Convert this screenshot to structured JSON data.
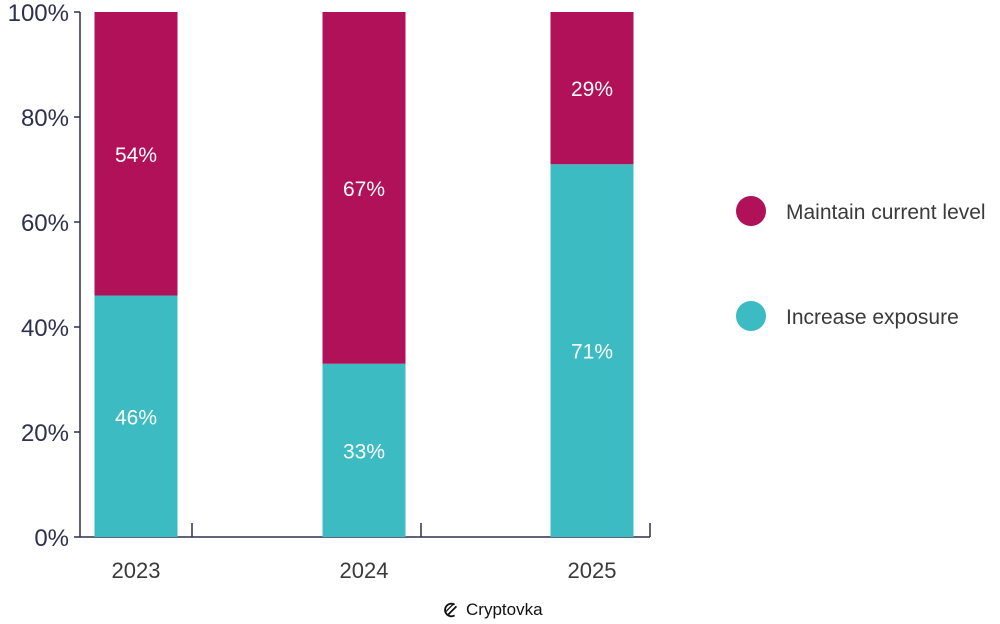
{
  "chart_data": {
    "type": "bar",
    "stacked": true,
    "title": "",
    "xlabel": "",
    "ylabel": "",
    "categories": [
      "2023",
      "2024",
      "2025"
    ],
    "series": [
      {
        "name": "Increase exposure",
        "values": [
          46,
          33,
          71
        ],
        "labels": [
          "46%",
          "33%",
          "71%"
        ],
        "color": "#3dbbc3"
      },
      {
        "name": "Maintain current level",
        "values": [
          54,
          67,
          29
        ],
        "labels": [
          "54%",
          "67%",
          "29%"
        ],
        "color": "#b01158"
      }
    ],
    "ylim": [
      0,
      100
    ],
    "yticks": [
      0,
      20,
      40,
      60,
      80,
      100
    ],
    "ytick_labels": [
      "0%",
      "20%",
      "40%",
      "60%",
      "80%",
      "100%"
    ],
    "legend": {
      "placement": "right",
      "items": [
        {
          "label": "Maintain current level",
          "color": "#b01158"
        },
        {
          "label": "Increase exposure",
          "color": "#3dbbc3"
        }
      ]
    },
    "axis_color": "#2f2f4f",
    "grid": false
  },
  "watermark": {
    "text": "Cryptovka",
    "icon": "cryptovka-logo-icon"
  }
}
